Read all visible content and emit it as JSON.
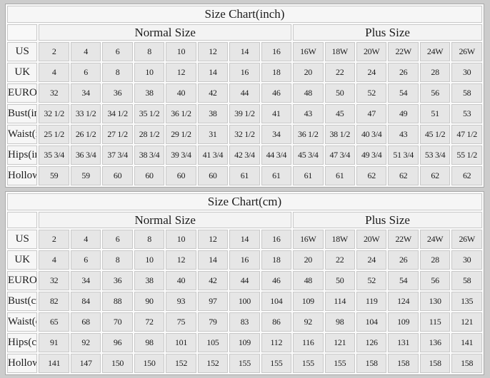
{
  "page": {
    "background": "#cccccc",
    "colors": {
      "data_cell_bg": "#e6e6e6",
      "label_cell_bg": "#f6f6f6",
      "cell_border": "#c9c9c9",
      "text": "#1c1c1c"
    }
  },
  "chart_data": [
    {
      "type": "table",
      "title": "Size Chart(inch)",
      "group_headers": {
        "normal": "Normal Size",
        "plus": "Plus Size"
      },
      "normal_span": 8,
      "plus_span": 6,
      "rows": [
        {
          "label": "US",
          "values": [
            "2",
            "4",
            "6",
            "8",
            "10",
            "12",
            "14",
            "16",
            "16W",
            "18W",
            "20W",
            "22W",
            "24W",
            "26W"
          ]
        },
        {
          "label": "UK",
          "values": [
            "4",
            "6",
            "8",
            "10",
            "12",
            "14",
            "16",
            "18",
            "20",
            "22",
            "24",
            "26",
            "28",
            "30"
          ]
        },
        {
          "label": "EUROPE",
          "values": [
            "32",
            "34",
            "36",
            "38",
            "40",
            "42",
            "44",
            "46",
            "48",
            "50",
            "52",
            "54",
            "56",
            "58"
          ]
        },
        {
          "label": "Bust(inch)",
          "values": [
            "32 1/2",
            "33 1/2",
            "34 1/2",
            "35 1/2",
            "36 1/2",
            "38",
            "39 1/2",
            "41",
            "43",
            "45",
            "47",
            "49",
            "51",
            "53"
          ]
        },
        {
          "label": "Waist(inch)",
          "values": [
            "25 1/2",
            "26 1/2",
            "27 1/2",
            "28 1/2",
            "29 1/2",
            "31",
            "32 1/2",
            "34",
            "36 1/2",
            "38 1/2",
            "40 3/4",
            "43",
            "45 1/2",
            "47 1/2"
          ]
        },
        {
          "label": "Hips(inch)",
          "values": [
            "35 3/4",
            "36 3/4",
            "37 3/4",
            "38 3/4",
            "39 3/4",
            "41 3/4",
            "42 3/4",
            "44 3/4",
            "45 3/4",
            "47 3/4",
            "49 3/4",
            "51 3/4",
            "53 3/4",
            "55 1/2"
          ]
        },
        {
          "label": "Hollow to Floor(inch)",
          "values": [
            "59",
            "59",
            "60",
            "60",
            "60",
            "60",
            "61",
            "61",
            "61",
            "61",
            "62",
            "62",
            "62",
            "62"
          ]
        }
      ]
    },
    {
      "type": "table",
      "title": "Size Chart(cm)",
      "group_headers": {
        "normal": "Normal Size",
        "plus": "Plus Size"
      },
      "normal_span": 8,
      "plus_span": 6,
      "rows": [
        {
          "label": "US",
          "values": [
            "2",
            "4",
            "6",
            "8",
            "10",
            "12",
            "14",
            "16",
            "16W",
            "18W",
            "20W",
            "22W",
            "24W",
            "26W"
          ]
        },
        {
          "label": "UK",
          "values": [
            "4",
            "6",
            "8",
            "10",
            "12",
            "14",
            "16",
            "18",
            "20",
            "22",
            "24",
            "26",
            "28",
            "30"
          ]
        },
        {
          "label": "EUROPE",
          "values": [
            "32",
            "34",
            "36",
            "38",
            "40",
            "42",
            "44",
            "46",
            "48",
            "50",
            "52",
            "54",
            "56",
            "58"
          ]
        },
        {
          "label": "Bust(cm)",
          "values": [
            "82",
            "84",
            "88",
            "90",
            "93",
            "97",
            "100",
            "104",
            "109",
            "114",
            "119",
            "124",
            "130",
            "135"
          ]
        },
        {
          "label": "Waist(cm)",
          "values": [
            "65",
            "68",
            "70",
            "72",
            "75",
            "79",
            "83",
            "86",
            "92",
            "98",
            "104",
            "109",
            "115",
            "121"
          ]
        },
        {
          "label": "Hips(cm)",
          "values": [
            "91",
            "92",
            "96",
            "98",
            "101",
            "105",
            "109",
            "112",
            "116",
            "121",
            "126",
            "131",
            "136",
            "141"
          ]
        },
        {
          "label": "Hollow to Floor(cm)",
          "values": [
            "141",
            "147",
            "150",
            "150",
            "152",
            "152",
            "155",
            "155",
            "155",
            "155",
            "158",
            "158",
            "158",
            "158"
          ]
        }
      ]
    }
  ]
}
